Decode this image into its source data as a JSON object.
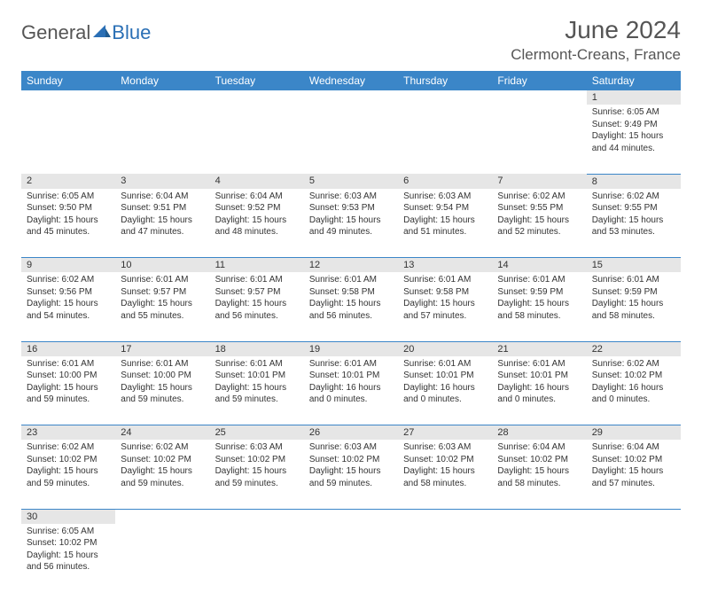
{
  "logo": {
    "text1": "General",
    "text2": "Blue"
  },
  "title": "June 2024",
  "location": "Clermont-Creans, France",
  "colors": {
    "header_bg": "#3b86c8",
    "header_fg": "#ffffff",
    "daynum_bg": "#e6e6e6",
    "border": "#3b86c8"
  },
  "day_headers": [
    "Sunday",
    "Monday",
    "Tuesday",
    "Wednesday",
    "Thursday",
    "Friday",
    "Saturday"
  ],
  "weeks": [
    [
      null,
      null,
      null,
      null,
      null,
      null,
      {
        "n": "1",
        "sr": "6:05 AM",
        "ss": "9:49 PM",
        "dl": "15 hours and 44 minutes."
      }
    ],
    [
      {
        "n": "2",
        "sr": "6:05 AM",
        "ss": "9:50 PM",
        "dl": "15 hours and 45 minutes."
      },
      {
        "n": "3",
        "sr": "6:04 AM",
        "ss": "9:51 PM",
        "dl": "15 hours and 47 minutes."
      },
      {
        "n": "4",
        "sr": "6:04 AM",
        "ss": "9:52 PM",
        "dl": "15 hours and 48 minutes."
      },
      {
        "n": "5",
        "sr": "6:03 AM",
        "ss": "9:53 PM",
        "dl": "15 hours and 49 minutes."
      },
      {
        "n": "6",
        "sr": "6:03 AM",
        "ss": "9:54 PM",
        "dl": "15 hours and 51 minutes."
      },
      {
        "n": "7",
        "sr": "6:02 AM",
        "ss": "9:55 PM",
        "dl": "15 hours and 52 minutes."
      },
      {
        "n": "8",
        "sr": "6:02 AM",
        "ss": "9:55 PM",
        "dl": "15 hours and 53 minutes."
      }
    ],
    [
      {
        "n": "9",
        "sr": "6:02 AM",
        "ss": "9:56 PM",
        "dl": "15 hours and 54 minutes."
      },
      {
        "n": "10",
        "sr": "6:01 AM",
        "ss": "9:57 PM",
        "dl": "15 hours and 55 minutes."
      },
      {
        "n": "11",
        "sr": "6:01 AM",
        "ss": "9:57 PM",
        "dl": "15 hours and 56 minutes."
      },
      {
        "n": "12",
        "sr": "6:01 AM",
        "ss": "9:58 PM",
        "dl": "15 hours and 56 minutes."
      },
      {
        "n": "13",
        "sr": "6:01 AM",
        "ss": "9:58 PM",
        "dl": "15 hours and 57 minutes."
      },
      {
        "n": "14",
        "sr": "6:01 AM",
        "ss": "9:59 PM",
        "dl": "15 hours and 58 minutes."
      },
      {
        "n": "15",
        "sr": "6:01 AM",
        "ss": "9:59 PM",
        "dl": "15 hours and 58 minutes."
      }
    ],
    [
      {
        "n": "16",
        "sr": "6:01 AM",
        "ss": "10:00 PM",
        "dl": "15 hours and 59 minutes."
      },
      {
        "n": "17",
        "sr": "6:01 AM",
        "ss": "10:00 PM",
        "dl": "15 hours and 59 minutes."
      },
      {
        "n": "18",
        "sr": "6:01 AM",
        "ss": "10:01 PM",
        "dl": "15 hours and 59 minutes."
      },
      {
        "n": "19",
        "sr": "6:01 AM",
        "ss": "10:01 PM",
        "dl": "16 hours and 0 minutes."
      },
      {
        "n": "20",
        "sr": "6:01 AM",
        "ss": "10:01 PM",
        "dl": "16 hours and 0 minutes."
      },
      {
        "n": "21",
        "sr": "6:01 AM",
        "ss": "10:01 PM",
        "dl": "16 hours and 0 minutes."
      },
      {
        "n": "22",
        "sr": "6:02 AM",
        "ss": "10:02 PM",
        "dl": "16 hours and 0 minutes."
      }
    ],
    [
      {
        "n": "23",
        "sr": "6:02 AM",
        "ss": "10:02 PM",
        "dl": "15 hours and 59 minutes."
      },
      {
        "n": "24",
        "sr": "6:02 AM",
        "ss": "10:02 PM",
        "dl": "15 hours and 59 minutes."
      },
      {
        "n": "25",
        "sr": "6:03 AM",
        "ss": "10:02 PM",
        "dl": "15 hours and 59 minutes."
      },
      {
        "n": "26",
        "sr": "6:03 AM",
        "ss": "10:02 PM",
        "dl": "15 hours and 59 minutes."
      },
      {
        "n": "27",
        "sr": "6:03 AM",
        "ss": "10:02 PM",
        "dl": "15 hours and 58 minutes."
      },
      {
        "n": "28",
        "sr": "6:04 AM",
        "ss": "10:02 PM",
        "dl": "15 hours and 58 minutes."
      },
      {
        "n": "29",
        "sr": "6:04 AM",
        "ss": "10:02 PM",
        "dl": "15 hours and 57 minutes."
      }
    ],
    [
      {
        "n": "30",
        "sr": "6:05 AM",
        "ss": "10:02 PM",
        "dl": "15 hours and 56 minutes."
      },
      null,
      null,
      null,
      null,
      null,
      null
    ]
  ],
  "labels": {
    "sunrise": "Sunrise:",
    "sunset": "Sunset:",
    "daylight": "Daylight:"
  }
}
